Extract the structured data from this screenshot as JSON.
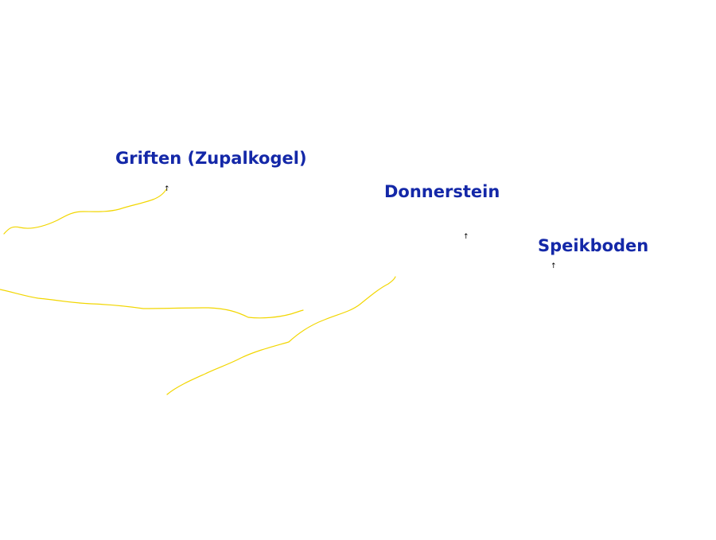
{
  "map": {
    "colors": {
      "label": "#1428a8",
      "road": "#f2d600",
      "background": "#ffffff"
    },
    "peaks": [
      {
        "name": "Griften (Zupalkogel)",
        "marker": "peak-marker-icon"
      },
      {
        "name": "Donnerstein",
        "marker": "peak-marker-icon"
      },
      {
        "name": "Speikboden",
        "marker": "peak-marker-icon"
      }
    ],
    "marker_glyph": "↑",
    "roads": [
      {
        "name": "road-segment-1"
      },
      {
        "name": "road-segment-2"
      },
      {
        "name": "road-segment-3"
      }
    ]
  }
}
